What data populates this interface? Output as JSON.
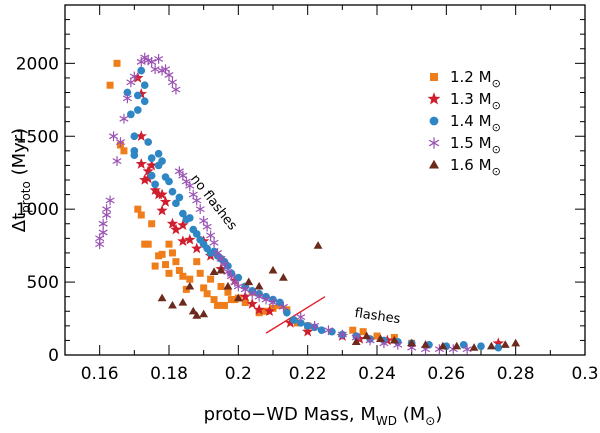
{
  "chart_data": {
    "type": "scatter",
    "xlabel": "proto−WD Mass, M_WD (M_⊙)",
    "xlabel_parts": {
      "main": "proto−WD Mass, M",
      "sub": "WD",
      "mid": " (M",
      "sun": "⊙",
      "end": ")"
    },
    "ylabel": "Δt_proto (Myr)",
    "ylabel_parts": {
      "main": "Δt",
      "sub": "proto",
      "end": " (Myr)"
    },
    "xlim": [
      0.15,
      0.3
    ],
    "ylim": [
      0,
      2400
    ],
    "xticks": [
      0.16,
      0.18,
      0.2,
      0.22,
      0.24,
      0.26,
      0.28,
      0.3
    ],
    "xtick_labels": [
      "0.16",
      "0.18",
      "0.2",
      "0.22",
      "0.24",
      "0.26",
      "0.28",
      "0.3"
    ],
    "yticks": [
      0,
      500,
      1000,
      1500,
      2000
    ],
    "ytick_labels": [
      "0",
      "500",
      "1000",
      "1500",
      "2000"
    ],
    "legend_position": "top-right",
    "annotations": [
      {
        "text": "no flashes",
        "x": 0.192,
        "y": 1030,
        "angle": 52
      },
      {
        "text": "flashes",
        "x": 0.24,
        "y": 240,
        "angle": 8
      }
    ],
    "divider_line": {
      "x": [
        0.208,
        0.225
      ],
      "y": [
        150,
        400
      ],
      "color": "#e8202a"
    },
    "series": [
      {
        "name": "1.2",
        "label_main": "1.2 M",
        "label_sun": "⊙",
        "marker": "square",
        "color": "#ef7d1a",
        "points": [
          [
            0.163,
            1850
          ],
          [
            0.165,
            2000
          ],
          [
            0.166,
            1440
          ],
          [
            0.167,
            1400
          ],
          [
            0.171,
            1000
          ],
          [
            0.172,
            960
          ],
          [
            0.173,
            760
          ],
          [
            0.174,
            760
          ],
          [
            0.175,
            900
          ],
          [
            0.176,
            610
          ],
          [
            0.177,
            680
          ],
          [
            0.178,
            690
          ],
          [
            0.179,
            620
          ],
          [
            0.18,
            560
          ],
          [
            0.18,
            760
          ],
          [
            0.181,
            700
          ],
          [
            0.182,
            640
          ],
          [
            0.183,
            580
          ],
          [
            0.184,
            540
          ],
          [
            0.185,
            450
          ],
          [
            0.186,
            520
          ],
          [
            0.188,
            640
          ],
          [
            0.189,
            560
          ],
          [
            0.19,
            460
          ],
          [
            0.191,
            420
          ],
          [
            0.192,
            520
          ],
          [
            0.193,
            380
          ],
          [
            0.194,
            340
          ],
          [
            0.195,
            470
          ],
          [
            0.196,
            340
          ],
          [
            0.197,
            430
          ],
          [
            0.198,
            380
          ],
          [
            0.199,
            380
          ],
          [
            0.2,
            390
          ],
          [
            0.202,
            360
          ],
          [
            0.204,
            430
          ],
          [
            0.206,
            290
          ],
          [
            0.208,
            300
          ],
          [
            0.21,
            320
          ],
          [
            0.212,
            340
          ],
          [
            0.214,
            310
          ],
          [
            0.217,
            220
          ],
          [
            0.22,
            200
          ],
          [
            0.233,
            170
          ],
          [
            0.236,
            160
          ],
          [
            0.24,
            130
          ],
          [
            0.245,
            120
          ],
          [
            0.25,
            80
          ]
        ]
      },
      {
        "name": "1.3",
        "label_main": "1.3 M",
        "label_sun": "⊙",
        "marker": "star",
        "color": "#cf1f2e",
        "points": [
          [
            0.171,
            1900
          ],
          [
            0.172,
            1790
          ],
          [
            0.172,
            1500
          ],
          [
            0.172,
            1310
          ],
          [
            0.173,
            1200
          ],
          [
            0.174,
            1210
          ],
          [
            0.174,
            1260
          ],
          [
            0.175,
            1300
          ],
          [
            0.176,
            1130
          ],
          [
            0.177,
            1100
          ],
          [
            0.178,
            1100
          ],
          [
            0.178,
            990
          ],
          [
            0.179,
            1050
          ],
          [
            0.181,
            900
          ],
          [
            0.182,
            860
          ],
          [
            0.184,
            780
          ],
          [
            0.184,
            890
          ],
          [
            0.186,
            790
          ],
          [
            0.188,
            730
          ],
          [
            0.19,
            780
          ],
          [
            0.192,
            680
          ],
          [
            0.195,
            590
          ],
          [
            0.199,
            510
          ],
          [
            0.202,
            400
          ],
          [
            0.204,
            350
          ],
          [
            0.206,
            310
          ],
          [
            0.209,
            300
          ],
          [
            0.215,
            220
          ],
          [
            0.22,
            160
          ],
          [
            0.23,
            130
          ],
          [
            0.235,
            110
          ],
          [
            0.243,
            100
          ],
          [
            0.275,
            80
          ]
        ]
      },
      {
        "name": "1.4",
        "label_main": "1.4 M",
        "label_sun": "⊙",
        "marker": "circle",
        "color": "#2f86c4",
        "points": [
          [
            0.168,
            1800
          ],
          [
            0.169,
            1650
          ],
          [
            0.17,
            1500
          ],
          [
            0.17,
            1400
          ],
          [
            0.17,
            1370
          ],
          [
            0.171,
            1780
          ],
          [
            0.171,
            1680
          ],
          [
            0.172,
            1950
          ],
          [
            0.173,
            1850
          ],
          [
            0.173,
            1740
          ],
          [
            0.174,
            1460
          ],
          [
            0.175,
            1230
          ],
          [
            0.175,
            1350
          ],
          [
            0.176,
            1170
          ],
          [
            0.177,
            1300
          ],
          [
            0.177,
            1380
          ],
          [
            0.178,
            1330
          ],
          [
            0.179,
            1220
          ],
          [
            0.18,
            1190
          ],
          [
            0.181,
            1120
          ],
          [
            0.182,
            1040
          ],
          [
            0.183,
            1080
          ],
          [
            0.184,
            970
          ],
          [
            0.185,
            930
          ],
          [
            0.186,
            940
          ],
          [
            0.187,
            860
          ],
          [
            0.188,
            830
          ],
          [
            0.189,
            790
          ],
          [
            0.19,
            760
          ],
          [
            0.191,
            730
          ],
          [
            0.192,
            700
          ],
          [
            0.193,
            710
          ],
          [
            0.194,
            680
          ],
          [
            0.195,
            660
          ],
          [
            0.196,
            640
          ],
          [
            0.197,
            610
          ],
          [
            0.198,
            560
          ],
          [
            0.2,
            530
          ],
          [
            0.202,
            470
          ],
          [
            0.204,
            440
          ],
          [
            0.206,
            420
          ],
          [
            0.208,
            400
          ],
          [
            0.21,
            380
          ],
          [
            0.212,
            360
          ],
          [
            0.214,
            290
          ],
          [
            0.216,
            240
          ],
          [
            0.218,
            220
          ],
          [
            0.22,
            200
          ],
          [
            0.222,
            190
          ],
          [
            0.224,
            170
          ],
          [
            0.227,
            160
          ],
          [
            0.23,
            140
          ],
          [
            0.234,
            130
          ],
          [
            0.238,
            110
          ],
          [
            0.242,
            100
          ],
          [
            0.246,
            90
          ],
          [
            0.25,
            80
          ],
          [
            0.255,
            70
          ],
          [
            0.26,
            60
          ],
          [
            0.265,
            70
          ],
          [
            0.27,
            60
          ],
          [
            0.275,
            50
          ]
        ]
      },
      {
        "name": "1.5",
        "label_main": "1.5 M",
        "label_sun": "⊙",
        "marker": "asterisk",
        "color": "#9a52b3",
        "points": [
          [
            0.16,
            800
          ],
          [
            0.16,
            760
          ],
          [
            0.161,
            840
          ],
          [
            0.161,
            900
          ],
          [
            0.162,
            960
          ],
          [
            0.162,
            1000
          ],
          [
            0.163,
            1060
          ],
          [
            0.164,
            1500
          ],
          [
            0.165,
            1330
          ],
          [
            0.166,
            1460
          ],
          [
            0.167,
            1620
          ],
          [
            0.168,
            1760
          ],
          [
            0.169,
            1870
          ],
          [
            0.17,
            1910
          ],
          [
            0.172,
            2010
          ],
          [
            0.173,
            2040
          ],
          [
            0.174,
            2020
          ],
          [
            0.175,
            2010
          ],
          [
            0.176,
            1960
          ],
          [
            0.177,
            2030
          ],
          [
            0.178,
            1950
          ],
          [
            0.179,
            1960
          ],
          [
            0.18,
            1920
          ],
          [
            0.181,
            1870
          ],
          [
            0.182,
            1820
          ],
          [
            0.183,
            1260
          ],
          [
            0.184,
            1230
          ],
          [
            0.185,
            1190
          ],
          [
            0.186,
            1160
          ],
          [
            0.187,
            1100
          ],
          [
            0.188,
            1060
          ],
          [
            0.189,
            1000
          ],
          [
            0.19,
            920
          ],
          [
            0.191,
            880
          ],
          [
            0.192,
            820
          ],
          [
            0.193,
            770
          ],
          [
            0.194,
            700
          ],
          [
            0.195,
            660
          ],
          [
            0.196,
            620
          ],
          [
            0.197,
            570
          ],
          [
            0.198,
            540
          ],
          [
            0.199,
            500
          ],
          [
            0.2,
            470
          ],
          [
            0.202,
            450
          ],
          [
            0.204,
            420
          ],
          [
            0.206,
            400
          ],
          [
            0.208,
            380
          ],
          [
            0.21,
            360
          ],
          [
            0.213,
            330
          ],
          [
            0.218,
            260
          ],
          [
            0.222,
            200
          ],
          [
            0.226,
            170
          ],
          [
            0.23,
            140
          ],
          [
            0.234,
            120
          ],
          [
            0.238,
            100
          ],
          [
            0.242,
            80
          ],
          [
            0.246,
            70
          ],
          [
            0.25,
            50
          ],
          [
            0.254,
            40
          ],
          [
            0.258,
            40
          ],
          [
            0.262,
            40
          ],
          [
            0.266,
            40
          ]
        ]
      },
      {
        "name": "1.6",
        "label_main": "1.6 M",
        "label_sun": "⊙",
        "marker": "triangle",
        "color": "#6b2a1c",
        "points": [
          [
            0.178,
            390
          ],
          [
            0.181,
            340
          ],
          [
            0.184,
            360
          ],
          [
            0.186,
            470
          ],
          [
            0.187,
            300
          ],
          [
            0.188,
            270
          ],
          [
            0.19,
            280
          ],
          [
            0.193,
            570
          ],
          [
            0.195,
            580
          ],
          [
            0.197,
            470
          ],
          [
            0.2,
            390
          ],
          [
            0.203,
            500
          ],
          [
            0.206,
            470
          ],
          [
            0.21,
            580
          ],
          [
            0.213,
            530
          ],
          [
            0.223,
            750
          ],
          [
            0.234,
            90
          ],
          [
            0.237,
            130
          ],
          [
            0.241,
            110
          ],
          [
            0.245,
            100
          ],
          [
            0.25,
            80
          ],
          [
            0.254,
            70
          ],
          [
            0.259,
            60
          ],
          [
            0.263,
            60
          ],
          [
            0.268,
            50
          ],
          [
            0.273,
            60
          ],
          [
            0.277,
            70
          ],
          [
            0.28,
            80
          ]
        ]
      }
    ]
  }
}
